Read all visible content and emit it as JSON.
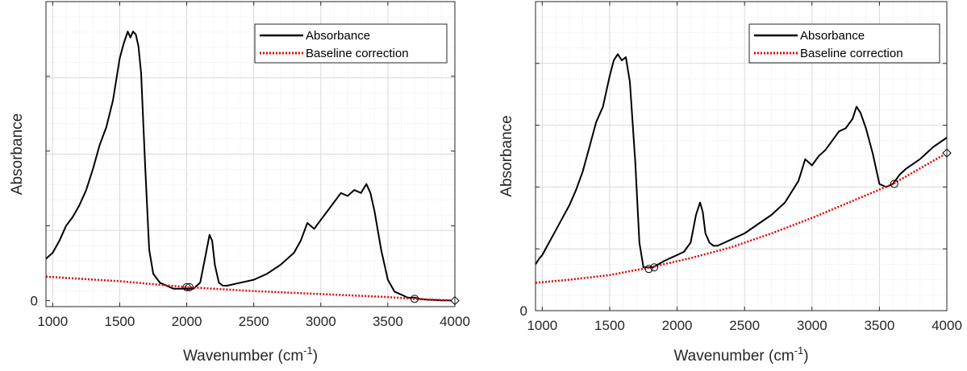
{
  "chart_data": [
    {
      "type": "line",
      "xlabel": "Wavenumber (cm",
      "xlabel_sup": "-1",
      "xlabel_close": ")",
      "ylabel": "Absorbance",
      "xlim": [
        950,
        4000
      ],
      "ylim": [
        -0.02,
        1.0
      ],
      "grid": "on (major and minor)",
      "legend_position": "top-right",
      "x_ticks": [
        1000,
        1500,
        2000,
        2500,
        3000,
        3500,
        4000
      ],
      "x_tick_labels": [
        "1000",
        "1500",
        "2000",
        "2500",
        "3000",
        "3500",
        "4000"
      ],
      "y_ticks": [
        0
      ],
      "y_tick_labels": [
        "0"
      ],
      "y_minor_ticks": [
        0.25,
        0.5,
        0.75
      ],
      "series": [
        {
          "name": "Absorbance",
          "color": "#000000",
          "style": "solid",
          "x": [
            950,
            1000,
            1050,
            1100,
            1150,
            1200,
            1250,
            1300,
            1350,
            1400,
            1450,
            1500,
            1530,
            1560,
            1580,
            1600,
            1620,
            1640,
            1660,
            1690,
            1720,
            1750,
            1800,
            1850,
            1900,
            1950,
            2000,
            2050,
            2100,
            2140,
            2170,
            2190,
            2210,
            2240,
            2270,
            2300,
            2400,
            2500,
            2600,
            2700,
            2800,
            2850,
            2900,
            2950,
            3000,
            3050,
            3100,
            3150,
            3200,
            3250,
            3300,
            3340,
            3370,
            3400,
            3450,
            3500,
            3550,
            3600,
            3650,
            3700,
            3750,
            3800,
            3850,
            3900,
            3950,
            4000
          ],
          "y": [
            0.14,
            0.16,
            0.2,
            0.25,
            0.28,
            0.32,
            0.37,
            0.44,
            0.52,
            0.58,
            0.67,
            0.81,
            0.86,
            0.9,
            0.88,
            0.9,
            0.89,
            0.85,
            0.76,
            0.45,
            0.17,
            0.09,
            0.06,
            0.05,
            0.04,
            0.04,
            0.04,
            0.04,
            0.06,
            0.15,
            0.22,
            0.2,
            0.12,
            0.06,
            0.05,
            0.05,
            0.06,
            0.07,
            0.09,
            0.12,
            0.16,
            0.2,
            0.26,
            0.24,
            0.27,
            0.3,
            0.33,
            0.36,
            0.35,
            0.37,
            0.36,
            0.39,
            0.36,
            0.3,
            0.17,
            0.07,
            0.03,
            0.02,
            0.01,
            0.01,
            0.005,
            0.003,
            0.002,
            0.001,
            0.001,
            0.0
          ]
        },
        {
          "name": "Baseline correction",
          "color": "#e60000",
          "style": "dotted",
          "x": [
            950,
            1500,
            2000,
            2500,
            3000,
            3500,
            3700,
            4000
          ],
          "y": [
            0.08,
            0.065,
            0.045,
            0.032,
            0.022,
            0.012,
            0.006,
            0.0
          ]
        }
      ],
      "markers": {
        "shape": "circle",
        "x": [
          2000,
          2020,
          3700
        ],
        "y": [
          0.045,
          0.045,
          0.006
        ]
      },
      "diamond_marker": {
        "x": 4000,
        "y": 0.0
      }
    },
    {
      "type": "line",
      "xlabel": "Wavenumber (cm",
      "xlabel_sup": "-1",
      "xlabel_close": ")",
      "ylabel": "Absorbance",
      "xlim": [
        950,
        4000
      ],
      "ylim": [
        0,
        1.0
      ],
      "grid": "on (major and minor)",
      "legend_position": "top-right",
      "x_ticks": [
        1000,
        1500,
        2000,
        2500,
        3000,
        3500,
        4000
      ],
      "x_tick_labels": [
        "1000",
        "1500",
        "2000",
        "2500",
        "3000",
        "3500",
        "4000"
      ],
      "y_ticks": [
        0
      ],
      "y_tick_labels": [
        "0"
      ],
      "y_minor_ticks": [
        0.2,
        0.4,
        0.6,
        0.8
      ],
      "series": [
        {
          "name": "Absorbance",
          "color": "#000000",
          "style": "solid",
          "x": [
            950,
            980,
            1000,
            1050,
            1100,
            1150,
            1200,
            1250,
            1300,
            1350,
            1400,
            1450,
            1500,
            1530,
            1560,
            1590,
            1620,
            1650,
            1690,
            1720,
            1750,
            1780,
            1820,
            1900,
            1950,
            2000,
            2050,
            2100,
            2140,
            2170,
            2190,
            2210,
            2240,
            2270,
            2300,
            2400,
            2500,
            2600,
            2700,
            2800,
            2900,
            2950,
            3000,
            3050,
            3100,
            3150,
            3200,
            3250,
            3300,
            3330,
            3360,
            3400,
            3450,
            3500,
            3550,
            3600,
            3650,
            3700,
            3800,
            3900,
            4000
          ],
          "y": [
            0.15,
            0.17,
            0.18,
            0.22,
            0.26,
            0.3,
            0.34,
            0.39,
            0.45,
            0.53,
            0.61,
            0.66,
            0.76,
            0.81,
            0.83,
            0.81,
            0.82,
            0.74,
            0.48,
            0.22,
            0.14,
            0.14,
            0.14,
            0.16,
            0.17,
            0.18,
            0.19,
            0.22,
            0.31,
            0.35,
            0.32,
            0.25,
            0.22,
            0.21,
            0.21,
            0.23,
            0.25,
            0.28,
            0.31,
            0.35,
            0.42,
            0.49,
            0.47,
            0.5,
            0.52,
            0.55,
            0.58,
            0.59,
            0.62,
            0.66,
            0.64,
            0.59,
            0.51,
            0.41,
            0.4,
            0.41,
            0.44,
            0.46,
            0.49,
            0.53,
            0.56
          ]
        },
        {
          "name": "Baseline correction",
          "color": "#e60000",
          "style": "dotted",
          "x": [
            950,
            1200,
            1500,
            1800,
            2100,
            2400,
            2700,
            3000,
            3300,
            3600,
            4000
          ],
          "y": [
            0.09,
            0.1,
            0.115,
            0.14,
            0.17,
            0.205,
            0.25,
            0.3,
            0.355,
            0.41,
            0.51
          ]
        }
      ],
      "markers": {
        "shape": "circle",
        "x": [
          1790,
          1830,
          3610
        ],
        "y": [
          0.135,
          0.14,
          0.41
        ]
      },
      "diamond_marker": {
        "x": 4000,
        "y": 0.51
      }
    }
  ]
}
